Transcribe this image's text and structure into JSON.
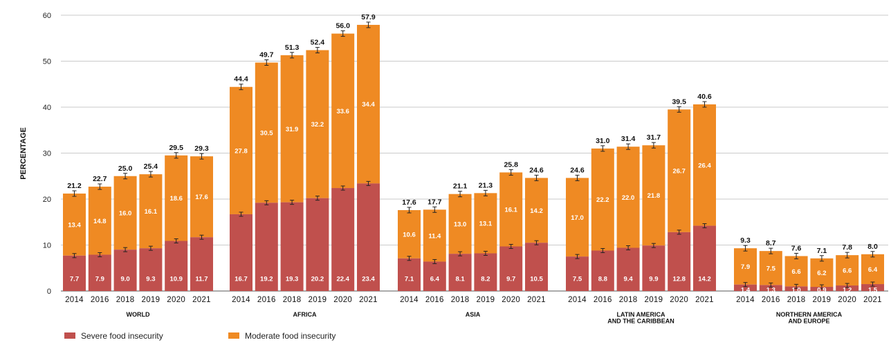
{
  "chart_data": {
    "type": "bar",
    "stacked": true,
    "ylabel": "PERCENTAGE",
    "ylim": [
      0,
      60
    ],
    "yticks": [
      0,
      10,
      20,
      30,
      40,
      50,
      60
    ],
    "grid": true,
    "legend_position": "bottom-left",
    "colors": {
      "severe": "#C0504D",
      "moderate": "#EF8A23"
    },
    "legend": [
      "Severe food insecurity",
      "Moderate food insecurity"
    ],
    "groups": [
      {
        "name": "WORLD",
        "years": [
          "2014",
          "2016",
          "2018",
          "2019",
          "2020",
          "2021"
        ],
        "severe": [
          "7.7",
          "7.9",
          "9.0",
          "9.3",
          "10.9",
          "11.7"
        ],
        "moderate": [
          "13.4",
          "14.8",
          "16.0",
          "16.1",
          "18.6",
          "17.6"
        ],
        "total": [
          "21.2",
          "22.7",
          "25.0",
          "25.4",
          "29.5",
          "29.3"
        ]
      },
      {
        "name": "AFRICA",
        "years": [
          "2014",
          "2016",
          "2018",
          "2019",
          "2020",
          "2021"
        ],
        "severe": [
          "16.7",
          "19.2",
          "19.3",
          "20.2",
          "22.4",
          "23.4"
        ],
        "moderate": [
          "27.8",
          "30.5",
          "31.9",
          "32.2",
          "33.6",
          "34.4"
        ],
        "total": [
          "44.4",
          "49.7",
          "51.3",
          "52.4",
          "56.0",
          "57.9"
        ]
      },
      {
        "name": "ASIA",
        "years": [
          "2014",
          "2016",
          "2018",
          "2019",
          "2020",
          "2021"
        ],
        "severe": [
          "7.1",
          "6.4",
          "8.1",
          "8.2",
          "9.7",
          "10.5"
        ],
        "moderate": [
          "10.6",
          "11.4",
          "13.0",
          "13.1",
          "16.1",
          "14.2"
        ],
        "total": [
          "17.6",
          "17.7",
          "21.1",
          "21.3",
          "25.8",
          "24.6"
        ]
      },
      {
        "name": "LATIN AMERICA\nAND THE CARIBBEAN",
        "years": [
          "2014",
          "2016",
          "2018",
          "2019",
          "2020",
          "2021"
        ],
        "severe": [
          "7.5",
          "8.8",
          "9.4",
          "9.9",
          "12.8",
          "14.2"
        ],
        "moderate": [
          "17.0",
          "22.2",
          "22.0",
          "21.8",
          "26.7",
          "26.4"
        ],
        "total": [
          "24.6",
          "31.0",
          "31.4",
          "31.7",
          "39.5",
          "40.6"
        ]
      },
      {
        "name": "NORTHERN AMERICA\nAND EUROPE",
        "years": [
          "2014",
          "2016",
          "2018",
          "2019",
          "2020",
          "2021"
        ],
        "severe": [
          "1.4",
          "1.3",
          "1.0",
          "0.9",
          "1.2",
          "1.5"
        ],
        "moderate": [
          "7.9",
          "7.5",
          "6.6",
          "6.2",
          "6.6",
          "6.4"
        ],
        "total": [
          "9.3",
          "8.7",
          "7.6",
          "7.1",
          "7.8",
          "8.0"
        ]
      }
    ]
  }
}
